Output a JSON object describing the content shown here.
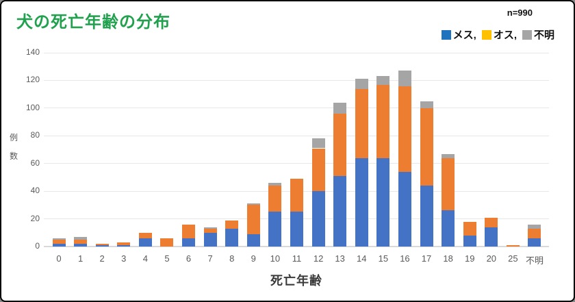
{
  "header": {
    "title": "犬の死亡年齢の分布",
    "n_label": "n=990"
  },
  "legend": {
    "items": [
      {
        "label": "メス",
        "suffix": ",",
        "color": "#1E73BE"
      },
      {
        "label": "オス",
        "suffix": ",",
        "color": "#FFC000"
      },
      {
        "label": "不明",
        "suffix": "",
        "color": "#A6A6A6"
      }
    ]
  },
  "chart_data": {
    "type": "bar",
    "stacked": true,
    "title": "犬の死亡年齢の分布",
    "xlabel": "死亡年齢",
    "ylabel": "例数",
    "ylabel_chars": [
      "例",
      "数"
    ],
    "n_total": 990,
    "categories": [
      "0",
      "1",
      "2",
      "3",
      "4",
      "5",
      "6",
      "7",
      "8",
      "9",
      "10",
      "11",
      "12",
      "13",
      "14",
      "15",
      "16",
      "17",
      "18",
      "19",
      "20",
      "25",
      "不明"
    ],
    "series": [
      {
        "name": "メス",
        "color": "#4472C4",
        "values": [
          2,
          2,
          1,
          1,
          6,
          0,
          6,
          10,
          13,
          9,
          25,
          25,
          40,
          51,
          64,
          64,
          54,
          44,
          26,
          8,
          14,
          0,
          6
        ]
      },
      {
        "name": "オス",
        "color": "#ED7D31",
        "values": [
          3,
          3,
          1,
          2,
          4,
          6,
          10,
          3,
          6,
          21,
          19,
          24,
          31,
          45,
          50,
          53,
          62,
          56,
          38,
          10,
          7,
          1,
          7
        ]
      },
      {
        "name": "不明",
        "color": "#A5A5A5",
        "values": [
          1,
          2,
          0,
          0,
          0,
          0,
          0,
          1,
          0,
          1,
          2,
          0,
          7,
          8,
          7,
          6,
          11,
          5,
          3,
          0,
          0,
          0,
          3
        ]
      }
    ],
    "totals": [
      6,
      7,
      2,
      3,
      10,
      6,
      16,
      14,
      19,
      31,
      46,
      49,
      78,
      104,
      121,
      123,
      127,
      105,
      67,
      18,
      21,
      1,
      16
    ],
    "ylim": [
      0,
      140
    ],
    "ytick_step": 20,
    "grid": true,
    "legend_position": "top-right",
    "colors": {
      "grid": "#E7E7E7",
      "axis_line": "#D9D9D9",
      "tick_text": "#595959",
      "title_green": "#21A14E"
    }
  }
}
